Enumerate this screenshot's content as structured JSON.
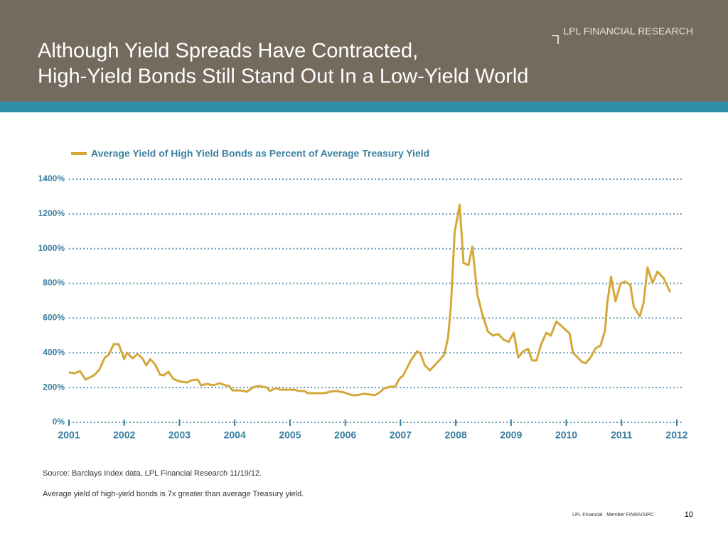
{
  "header": {
    "brand": "LPL FINANCIAL RESEARCH",
    "title_line1": "Although Yield Spreads Have Contracted,",
    "title_line2": "High-Yield Bonds Still Stand Out In a Low-Yield World"
  },
  "chart_data": {
    "type": "line",
    "grid": true,
    "x": [
      2001.0,
      2001.1,
      2001.2,
      2001.3,
      2001.45,
      2001.55,
      2001.65,
      2001.72,
      2001.81,
      2001.9,
      2002.0,
      2002.05,
      2002.15,
      2002.24,
      2002.33,
      2002.4,
      2002.47,
      2002.56,
      2002.65,
      2002.71,
      2002.8,
      2002.89,
      2002.98,
      2003.13,
      2003.22,
      2003.33,
      2003.39,
      2003.5,
      2003.61,
      2003.73,
      2003.83,
      2003.9,
      2003.96,
      2004.1,
      2004.22,
      2004.33,
      2004.42,
      2004.57,
      2004.64,
      2004.74,
      2004.83,
      2004.96,
      2005.08,
      2005.16,
      2005.26,
      2005.32,
      2005.54,
      2005.63,
      2005.72,
      2005.84,
      2005.98,
      2006.12,
      2006.2,
      2006.34,
      2006.45,
      2006.54,
      2006.62,
      2006.71,
      2006.83,
      2006.9,
      2006.98,
      2007.05,
      2007.18,
      2007.3,
      2007.36,
      2007.44,
      2007.53,
      2007.59,
      2007.7,
      2007.79,
      2007.86,
      2007.91,
      2007.98,
      2008.07,
      2008.14,
      2008.23,
      2008.3,
      2008.39,
      2008.48,
      2008.58,
      2008.67,
      2008.77,
      2008.87,
      2008.96,
      2009.05,
      2009.13,
      2009.22,
      2009.31,
      2009.38,
      2009.46,
      2009.55,
      2009.64,
      2009.72,
      2009.82,
      2009.93,
      2010.06,
      2010.12,
      2010.17,
      2010.28,
      2010.35,
      2010.44,
      2010.53,
      2010.62,
      2010.7,
      2010.74,
      2010.81,
      2010.89,
      2010.98,
      2011.06,
      2011.16,
      2011.22,
      2011.33,
      2011.4,
      2011.47,
      2011.56,
      2011.65,
      2011.76,
      2011.88
    ],
    "series": [
      {
        "name": "Average Yield of High Yield Bonds as Percent of Average Treasury Yield",
        "color": "#d4a838",
        "values": [
          287,
          282,
          295,
          246,
          270,
          303,
          373,
          389,
          450,
          450,
          364,
          401,
          368,
          393,
          368,
          328,
          364,
          332,
          274,
          270,
          291,
          250,
          237,
          229,
          242,
          246,
          213,
          221,
          213,
          225,
          213,
          209,
          184,
          184,
          176,
          201,
          209,
          201,
          180,
          197,
          188,
          188,
          188,
          180,
          180,
          168,
          168,
          168,
          176,
          180,
          172,
          156,
          156,
          164,
          160,
          156,
          172,
          197,
          205,
          205,
          250,
          270,
          352,
          409,
          397,
          328,
          299,
          319,
          356,
          389,
          487,
          659,
          1093,
          1253,
          917,
          905,
          1011,
          737,
          622,
          524,
          499,
          508,
          475,
          463,
          516,
          373,
          409,
          422,
          356,
          356,
          454,
          516,
          499,
          581,
          549,
          512,
          401,
          385,
          348,
          340,
          373,
          426,
          442,
          528,
          684,
          839,
          696,
          798,
          811,
          790,
          667,
          610,
          692,
          892,
          802,
          868,
          831,
          749
        ]
      }
    ],
    "xlim": [
      2001,
      2012
    ],
    "xticks": [
      2001,
      2002,
      2003,
      2004,
      2005,
      2006,
      2007,
      2008,
      2009,
      2010,
      2011,
      2012
    ],
    "ylim": [
      0,
      1400
    ],
    "yticks": [
      {
        "value": 0,
        "label": "0%"
      },
      {
        "value": 200,
        "label": "200%"
      },
      {
        "value": 400,
        "label": "400%"
      },
      {
        "value": 600,
        "label": "600%"
      },
      {
        "value": 800,
        "label": "800%"
      },
      {
        "value": 1000,
        "label": "1000%"
      },
      {
        "value": 1200,
        "label": "1200%"
      },
      {
        "value": 1400,
        "label": "1400%"
      }
    ]
  },
  "notes": [
    "Source: Barclays Index data, LPL Financial Research 11/19/12.",
    "Average yield of high-yield bonds is 7x greater than average Treasury yield."
  ],
  "footer": {
    "company": "LPL Financial   Member FINRA/SIPC",
    "page": "10"
  }
}
